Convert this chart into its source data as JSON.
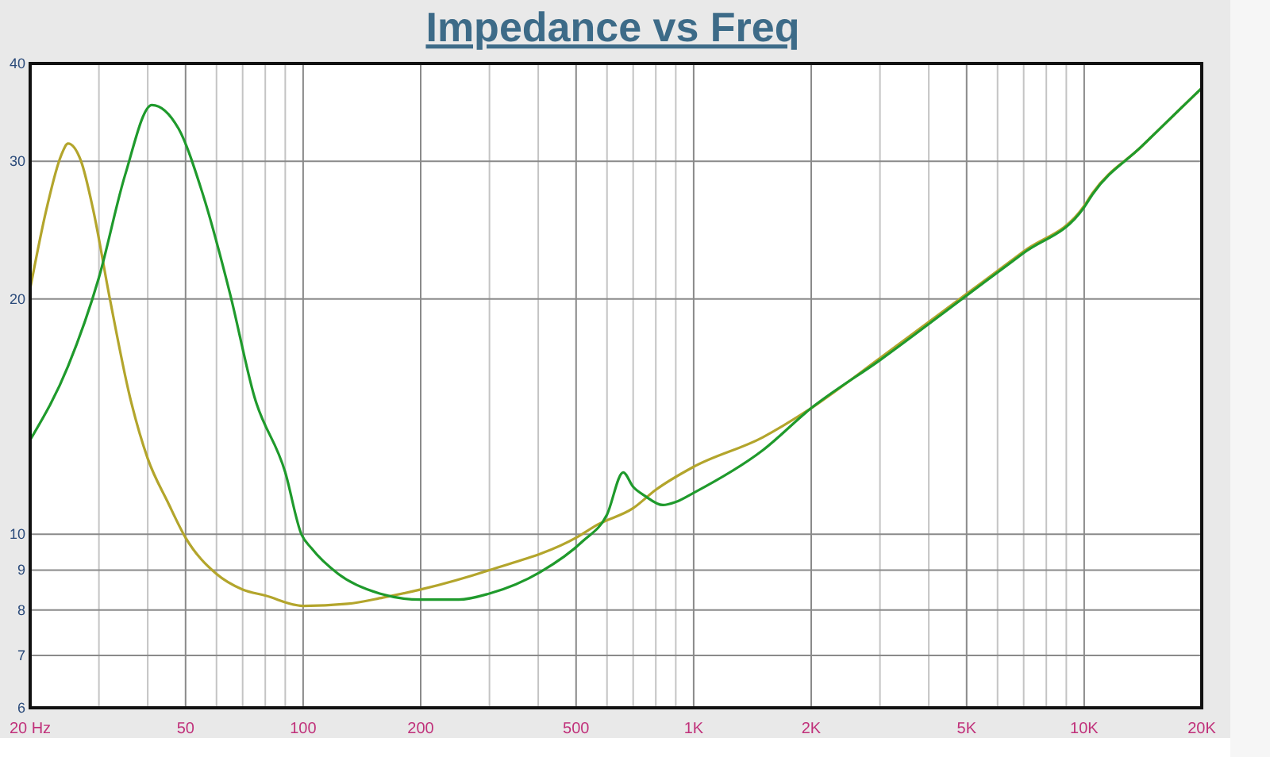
{
  "chart_data": {
    "type": "line",
    "title": "Impedance vs Freq",
    "log": "xy",
    "grid": true,
    "marker": "none",
    "line_style": "solid",
    "xlim": [
      20,
      20000
    ],
    "ylim": [
      6,
      40
    ],
    "xticks": [
      {
        "value": 20,
        "label": "20 Hz"
      },
      {
        "value": 30,
        "label": null
      },
      {
        "value": 40,
        "label": null
      },
      50,
      {
        "value": 60,
        "label": null
      },
      {
        "value": 70,
        "label": null
      },
      {
        "value": 80,
        "label": null
      },
      {
        "value": 90,
        "label": null
      },
      100,
      200,
      {
        "value": 300,
        "label": null
      },
      {
        "value": 400,
        "label": null
      },
      500,
      {
        "value": 600,
        "label": null
      },
      {
        "value": 700,
        "label": null
      },
      {
        "value": 800,
        "label": null
      },
      {
        "value": 900,
        "label": null
      },
      {
        "value": 1000,
        "label": "1K"
      },
      {
        "value": 2000,
        "label": "2K"
      },
      {
        "value": 3000,
        "label": null
      },
      {
        "value": 4000,
        "label": null
      },
      {
        "value": 5000,
        "label": "5K"
      },
      {
        "value": 6000,
        "label": null
      },
      {
        "value": 7000,
        "label": null
      },
      {
        "value": 8000,
        "label": null
      },
      {
        "value": 9000,
        "label": null
      },
      {
        "value": 10000,
        "label": "10K"
      },
      {
        "value": 20000,
        "label": "20K"
      }
    ],
    "yticks": [
      6,
      7,
      8,
      9,
      10,
      20,
      30,
      40
    ],
    "series": [
      {
        "color": "#b3a52c",
        "x": [
          20,
          22,
          24,
          25,
          27,
          29,
          32,
          36,
          40,
          45,
          50,
          60,
          70,
          80,
          100,
          130,
          160,
          200,
          300,
          500,
          570,
          700,
          800,
          1000,
          1500,
          2000,
          3000,
          5000,
          7000,
          10000,
          10500,
          14000,
          17000,
          20000
        ],
        "values": [
          20.6,
          26,
          30.5,
          31.6,
          30,
          26,
          20,
          15,
          12.5,
          11,
          9.9,
          8.9,
          8.5,
          8.35,
          8.1,
          8.15,
          8.3,
          8.5,
          9,
          9.9,
          10.3,
          10.8,
          11.4,
          12.2,
          13.3,
          14.5,
          16.8,
          20.3,
          23,
          26.3,
          27.3,
          31.3,
          34.4,
          37.2
        ]
      },
      {
        "color": "#1f9a2c",
        "x": [
          20,
          25,
          30,
          35,
          41,
          48,
          55,
          65,
          75,
          90,
          99,
          105,
          123,
          157,
          200,
          250,
          300,
          405,
          520,
          600,
          660,
          700,
          750,
          834,
          900,
          1000,
          1500,
          2000,
          3000,
          5000,
          7000,
          10000,
          10500,
          14000,
          17000,
          20000
        ],
        "values": [
          13.2,
          16.4,
          21.3,
          28.8,
          35.4,
          33,
          27.5,
          20.3,
          15,
          12,
          10,
          9.6,
          8.9,
          8.4,
          8.25,
          8.25,
          8.4,
          8.95,
          9.8,
          10.6,
          12,
          11.5,
          11.2,
          10.9,
          11,
          11.3,
          12.8,
          14.5,
          16.7,
          20.2,
          22.9,
          26.2,
          27.2,
          31.3,
          34.4,
          37.2
        ]
      }
    ]
  }
}
